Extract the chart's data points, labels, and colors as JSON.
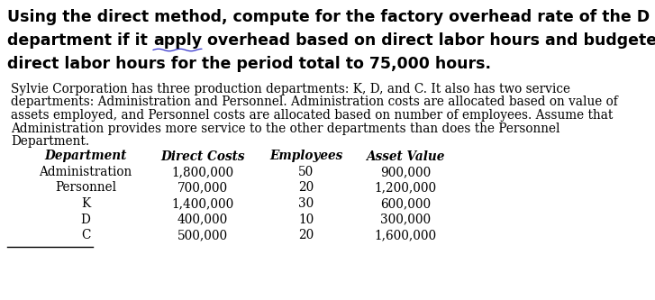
{
  "title_line1": "Using the direct method, compute for the factory overhead rate of the D",
  "title_line2_pre": "department if it ",
  "title_line2_ul": "apply",
  "title_line2_post": " overhead based on direct labor hours and budgeted",
  "title_line3": "direct labor hours for the period total to 75,000 hours.",
  "body_text_lines": [
    "Sylvie Corporation has three production departments: K, D, and C. It also has two service",
    "departments: Administration and Personnel. Administration costs are allocated based on value of",
    "assets employed, and Personnel costs are allocated based on number of employees. Assume that",
    "Administration provides more service to the other departments than does the Personnel",
    "Department."
  ],
  "table_headers": [
    "Department",
    "Direct Costs",
    "Employees",
    "Asset Value"
  ],
  "table_rows": [
    [
      "Administration",
      "1,800,000",
      "50",
      "900,000"
    ],
    [
      "Personnel",
      "700,000",
      "20",
      "1,200,000"
    ],
    [
      "K",
      "1,400,000",
      "30",
      "600,000"
    ],
    [
      "D",
      "400,000",
      "10",
      "300,000"
    ],
    [
      "C",
      "500,000",
      "20",
      "1,600,000"
    ]
  ],
  "bg_color": "#ffffff",
  "text_color": "#000000",
  "title_fontsize": 12.5,
  "body_fontsize": 9.8,
  "table_fontsize": 9.8,
  "figsize": [
    7.27,
    3.33
  ],
  "dpi": 100
}
